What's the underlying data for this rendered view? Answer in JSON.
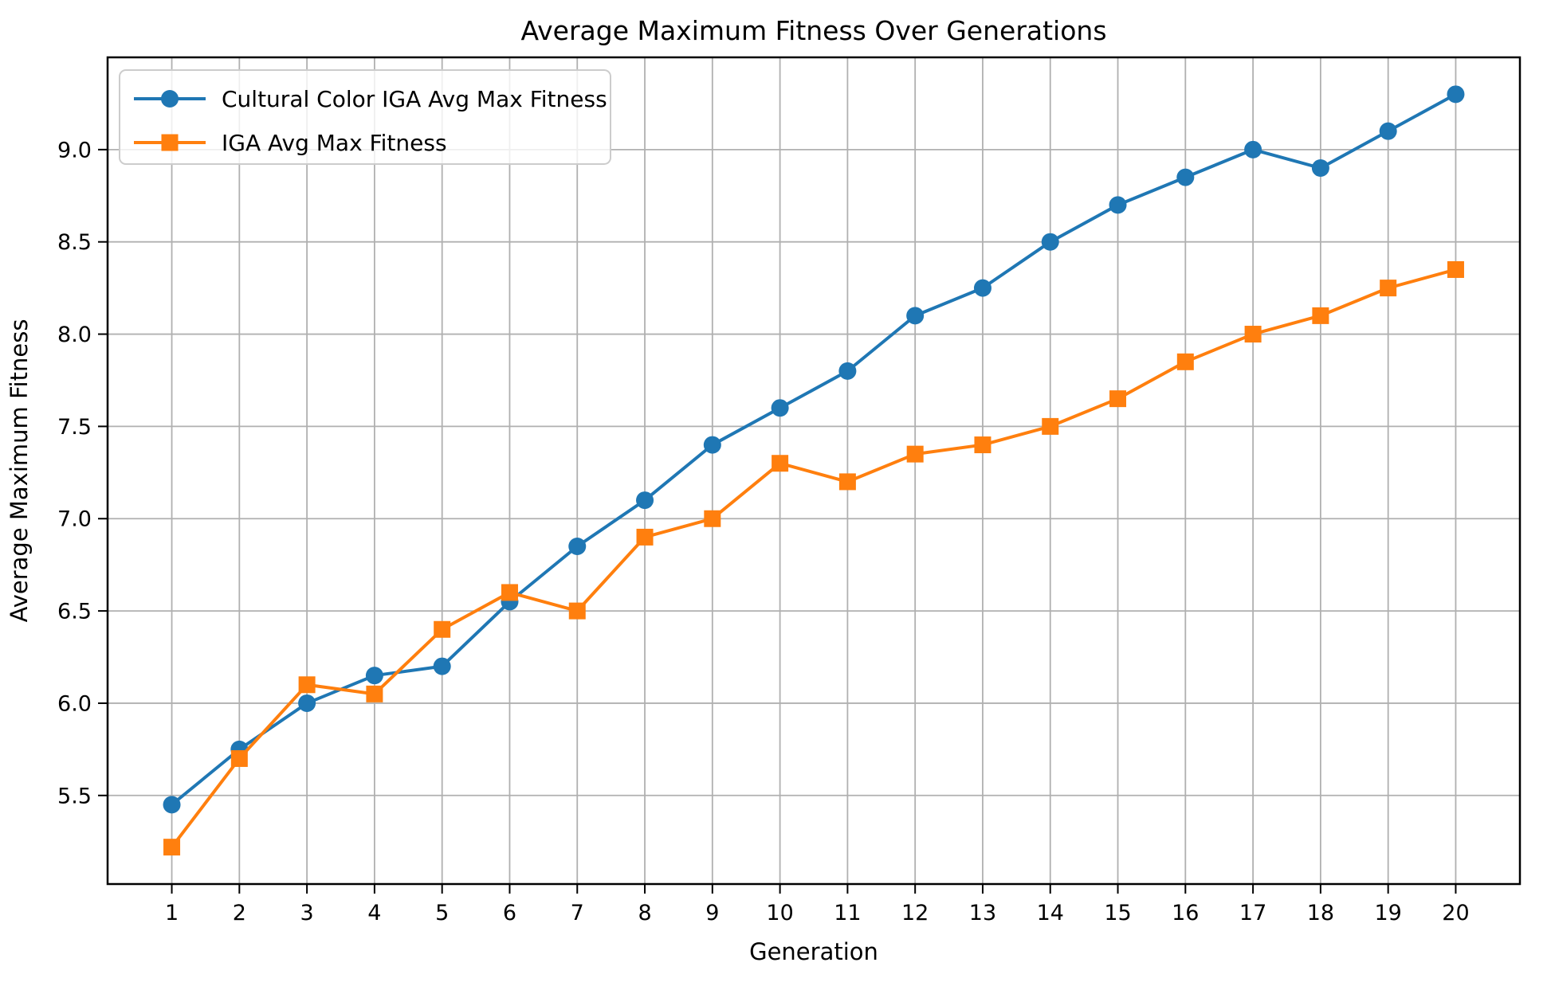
{
  "figure": {
    "background": "#ffffff"
  },
  "chart_data": {
    "type": "line",
    "title": "Average Maximum Fitness Over Generations",
    "xlabel": "Generation",
    "ylabel": "Average Maximum Fitness",
    "x": [
      1,
      2,
      3,
      4,
      5,
      6,
      7,
      8,
      9,
      10,
      11,
      12,
      13,
      14,
      15,
      16,
      17,
      18,
      19,
      20
    ],
    "xtick_labels": [
      "1",
      "2",
      "3",
      "4",
      "5",
      "6",
      "7",
      "8",
      "9",
      "10",
      "11",
      "12",
      "13",
      "14",
      "15",
      "16",
      "17",
      "18",
      "19",
      "20"
    ],
    "yticks": [
      5.5,
      6.0,
      6.5,
      7.0,
      7.5,
      8.0,
      8.5,
      9.0
    ],
    "ytick_labels": [
      "5.5",
      "6.0",
      "6.5",
      "7.0",
      "7.5",
      "8.0",
      "8.5",
      "9.0"
    ],
    "xlim": [
      0.05,
      20.95
    ],
    "ylim": [
      5.02,
      9.5
    ],
    "grid": true,
    "grid_color": "#b0b0b0",
    "spine_color": "#000000",
    "series": [
      {
        "name": "Cultural Color IGA Avg Max Fitness",
        "color": "#1f77b4",
        "marker": "circle",
        "values": [
          5.45,
          5.75,
          6.0,
          6.15,
          6.2,
          6.55,
          6.85,
          7.1,
          7.4,
          7.6,
          7.8,
          8.1,
          8.25,
          8.5,
          8.7,
          8.85,
          9.0,
          8.9,
          9.1,
          9.3
        ]
      },
      {
        "name": "IGA Avg Max Fitness",
        "color": "#ff7f0e",
        "marker": "square",
        "values": [
          5.22,
          5.7,
          6.1,
          6.05,
          6.4,
          6.6,
          6.5,
          6.9,
          7.0,
          7.3,
          7.2,
          7.35,
          7.4,
          7.5,
          7.65,
          7.85,
          8.0,
          8.1,
          8.25,
          8.35
        ]
      }
    ],
    "legend": {
      "position": "upper-left",
      "frame": true,
      "border_color": "#cccccc",
      "background": "#ffffff"
    }
  }
}
